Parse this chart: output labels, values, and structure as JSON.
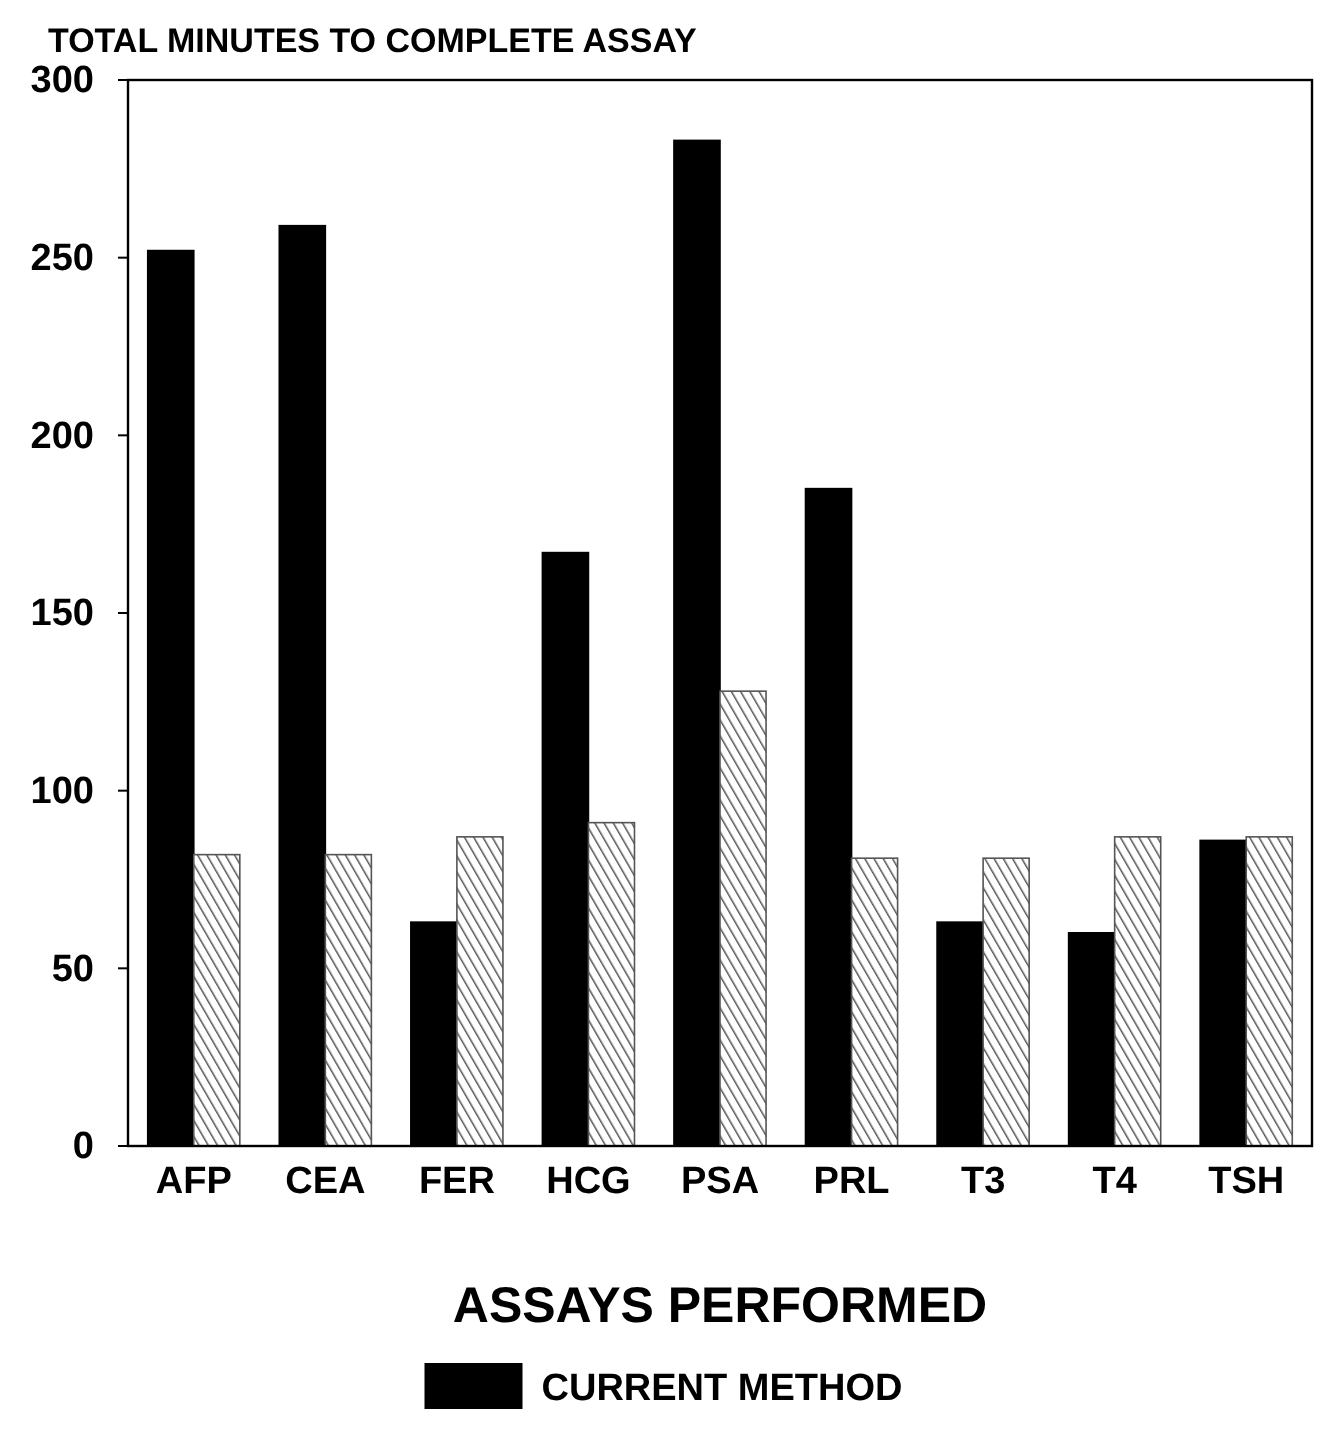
{
  "chart_data": {
    "type": "bar",
    "title": "TOTAL MINUTES TO COMPLETE ASSAY",
    "xlabel": "ASSAYS PERFORMED",
    "categories": [
      "AFP",
      "CEA",
      "FER",
      "HCG",
      "PSA",
      "PRL",
      "T3",
      "T4",
      "TSH"
    ],
    "series": [
      {
        "name": "CURRENT METHOD",
        "color": "#000000",
        "values": [
          252,
          259,
          63,
          167,
          283,
          185,
          63,
          60,
          86
        ]
      },
      {
        "color": "#555555",
        "values": [
          82,
          82,
          87,
          91,
          128,
          81,
          81,
          87,
          87
        ]
      }
    ],
    "ylim": [
      0,
      300
    ],
    "yticks": [
      0,
      50,
      100,
      150,
      200,
      250,
      300
    ],
    "grid": false,
    "legend": "bottom"
  }
}
